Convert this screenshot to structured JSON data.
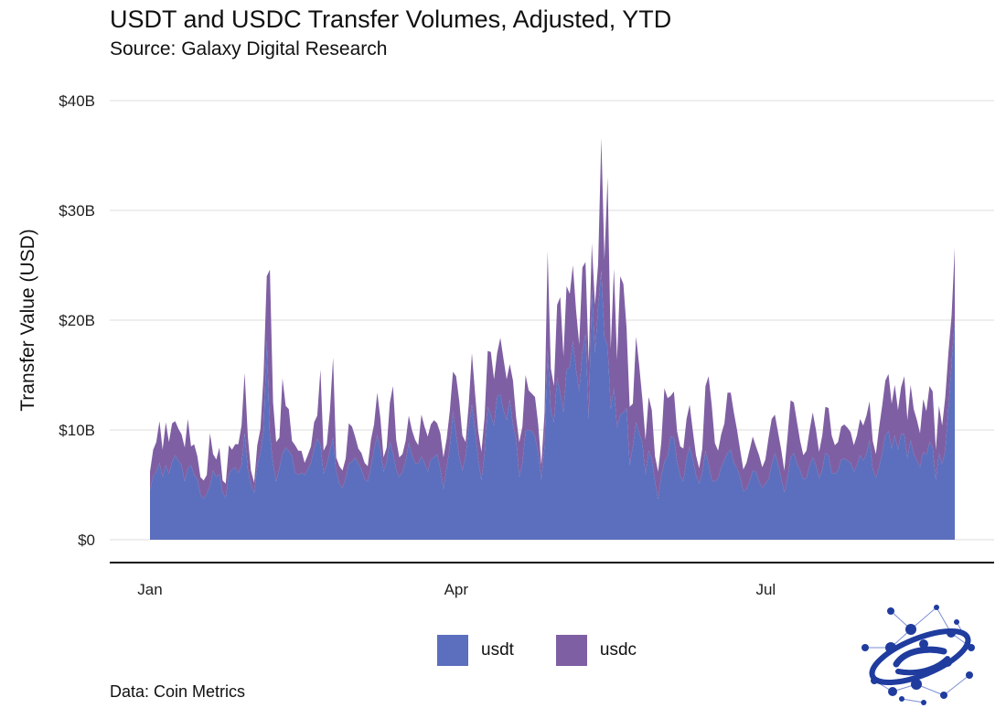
{
  "header": {
    "title": "USDT and USDC Transfer Volumes, Adjusted, YTD",
    "subtitle": "Source: Galaxy Digital Research"
  },
  "caption": "Data: Coin Metrics",
  "colors": {
    "usdt": "#5b6fbe",
    "usdc": "#7f5fa3",
    "grid": "#e3e3e3",
    "axis": "#111111"
  },
  "logo": {
    "icon": "galaxy-digital-network-globe-icon",
    "color": "#1f3c9e"
  },
  "chart_data": {
    "type": "area",
    "stacked": true,
    "title": "USDT and USDC Transfer Volumes, Adjusted, YTD",
    "subtitle": "Source: Galaxy Digital Research",
    "xlabel": "",
    "ylabel": "Transfer Value (USD)",
    "ylim": [
      0,
      40
    ],
    "y_unit": "billions USD",
    "y_ticks": [
      "$0",
      "$10B",
      "$20B",
      "$30B",
      "$40B"
    ],
    "x_ticks": [
      "Jan",
      "Apr",
      "Jul"
    ],
    "x_range_days": [
      1,
      266
    ],
    "grid": true,
    "legend_position": "bottom",
    "series": [
      {
        "name": "usdt",
        "values": [
          4.5,
          5.8,
          6.2,
          7.0,
          5.7,
          6.8,
          6.0,
          7.1,
          7.7,
          7.2,
          6.8,
          5.3,
          6.5,
          6.8,
          5.9,
          5.5,
          4.1,
          3.7,
          4.2,
          4.9,
          6.3,
          5.7,
          6.0,
          4.3,
          3.8,
          6.0,
          6.4,
          6.6,
          6.1,
          6.8,
          9.7,
          6.4,
          5.0,
          4.2,
          6.8,
          7.9,
          9.9,
          18.2,
          9.6,
          6.9,
          5.3,
          6.5,
          7.8,
          8.4,
          8.1,
          7.6,
          6.1,
          5.9,
          6.1,
          5.9,
          6.4,
          7.0,
          8.3,
          9.2,
          8.7,
          6.0,
          6.8,
          8.1,
          9.3,
          6.2,
          5.1,
          4.7,
          5.6,
          6.9,
          7.1,
          7.5,
          6.9,
          6.4,
          5.5,
          5.3,
          6.6,
          8.2,
          9.5,
          8.2,
          6.2,
          7.1,
          8.9,
          7.9,
          6.4,
          5.7,
          6.2,
          7.1,
          8.8,
          7.7,
          7.0,
          6.9,
          7.6,
          7.0,
          6.2,
          7.3,
          7.5,
          7.8,
          6.4,
          4.6,
          6.6,
          8.4,
          11.7,
          9.6,
          7.5,
          6.3,
          7.6,
          10.2,
          12.3,
          9.8,
          7.3,
          5.4,
          7.7,
          12.1,
          11.3,
          10.4,
          13.1,
          13.2,
          11.8,
          10.9,
          12.8,
          10.4,
          9.2,
          5.7,
          7.0,
          9.9,
          10.0,
          9.9,
          9.4,
          7.9,
          5.5,
          8.5,
          17.3,
          11.7,
          10.7,
          14.8,
          13.4,
          11.6,
          15.5,
          15.7,
          18.1,
          15.5,
          13.5,
          17.1,
          18.7,
          11.0,
          22.8,
          17.0,
          21.2,
          24.5,
          18.5,
          17.6,
          11.9,
          13.9,
          10.2,
          11.4,
          11.6,
          12.0,
          6.8,
          8.5,
          10.7,
          9.7,
          8.8,
          5.9,
          8.1,
          7.4,
          5.3,
          3.7,
          5.8,
          7.1,
          7.6,
          9.4,
          9.3,
          7.1,
          5.8,
          5.3,
          7.4,
          8.5,
          7.3,
          5.9,
          5.1,
          6.1,
          8.1,
          6.9,
          5.4,
          5.3,
          5.6,
          6.6,
          7.3,
          7.9,
          8.2,
          7.0,
          6.5,
          5.7,
          4.4,
          4.6,
          5.3,
          6.3,
          6.2,
          5.3,
          4.7,
          5.1,
          5.5,
          6.8,
          7.9,
          6.9,
          5.6,
          4.3,
          5.6,
          7.5,
          7.9,
          6.9,
          6.3,
          5.5,
          5.6,
          6.8,
          7.5,
          6.8,
          5.6,
          6.4,
          7.9,
          7.7,
          6.1,
          6.0,
          6.3,
          7.3,
          7.4,
          7.2,
          7.0,
          6.2,
          6.8,
          7.7,
          7.2,
          7.8,
          9.1,
          6.4,
          5.6,
          6.6,
          7.9,
          9.5,
          9.9,
          8.3,
          9.5,
          8.2,
          9.6,
          9.6,
          7.4,
          9.1,
          7.8,
          7.2,
          6.6,
          8.0,
          7.7,
          8.9,
          8.4,
          5.4,
          7.9,
          6.9,
          8.1,
          12.1,
          16.1,
          20.0
        ]
      },
      {
        "name": "usdc",
        "values": [
          1.7,
          2.4,
          2.7,
          3.8,
          2.5,
          3.9,
          2.9,
          3.5,
          3.1,
          2.9,
          2.8,
          3.1,
          4.5,
          1.7,
          2.8,
          2.1,
          1.6,
          1.7,
          1.7,
          4.8,
          1.5,
          1.6,
          2.4,
          1.1,
          1.3,
          2.6,
          1.8,
          2.1,
          2.6,
          3.6,
          5.5,
          3.0,
          1.3,
          1.0,
          1.8,
          2.2,
          5.1,
          5.8,
          15.0,
          5.6,
          3.6,
          2.8,
          6.9,
          3.8,
          3.8,
          1.4,
          2.5,
          2.2,
          2.0,
          1.1,
          1.3,
          1.5,
          2.4,
          2.1,
          6.8,
          2.1,
          1.9,
          3.6,
          7.3,
          1.3,
          1.6,
          1.6,
          1.8,
          3.7,
          3.2,
          1.9,
          1.4,
          1.5,
          1.5,
          1.4,
          2.5,
          2.3,
          3.9,
          2.9,
          1.3,
          1.3,
          3.6,
          6.1,
          2.7,
          1.8,
          1.6,
          1.9,
          2.5,
          2.3,
          2.1,
          1.7,
          3.8,
          3.3,
          3.2,
          3.2,
          3.4,
          2.8,
          3.3,
          2.9,
          2.6,
          3.3,
          3.6,
          5.3,
          5.1,
          3.2,
          1.3,
          2.1,
          4.7,
          3.5,
          2.6,
          2.6,
          3.4,
          5.1,
          5.8,
          4.2,
          3.9,
          5.2,
          4.7,
          3.7,
          3.2,
          4.1,
          2.0,
          3.2,
          3.3,
          5.1,
          3.6,
          3.4,
          3.6,
          2.6,
          1.3,
          3.0,
          9.0,
          3.9,
          3.3,
          6.6,
          8.7,
          5.1,
          7.6,
          6.7,
          6.9,
          5.4,
          4.3,
          7.7,
          6.6,
          5.2,
          4.2,
          4.4,
          3.9,
          12.1,
          7.0,
          15.4,
          5.5,
          10.8,
          6.2,
          12.6,
          11.7,
          7.3,
          5.3,
          3.9,
          7.8,
          6.2,
          4.0,
          3.2,
          4.9,
          4.4,
          2.3,
          2.5,
          3.1,
          6.7,
          5.3,
          3.7,
          4.2,
          2.8,
          2.7,
          3.0,
          3.6,
          3.8,
          2.6,
          1.8,
          1.4,
          2.2,
          5.9,
          8.0,
          6.8,
          3.5,
          2.5,
          3.0,
          3.3,
          5.5,
          5.2,
          4.6,
          3.5,
          2.5,
          2.0,
          2.4,
          2.9,
          3.1,
          2.3,
          2.4,
          1.9,
          2.2,
          3.8,
          4.2,
          3.5,
          2.9,
          2.6,
          2.0,
          3.8,
          5.2,
          4.6,
          3.8,
          2.7,
          2.2,
          2.5,
          3.2,
          4.1,
          3.2,
          2.4,
          3.1,
          4.2,
          4.3,
          3.4,
          2.6,
          2.6,
          3.0,
          3.1,
          3.0,
          2.8,
          2.4,
          2.7,
          3.3,
          3.2,
          3.5,
          3.5,
          2.6,
          2.2,
          3.6,
          4.3,
          5.0,
          5.2,
          4.1,
          4.6,
          3.6,
          4.3,
          5.3,
          3.5,
          5.0,
          4.1,
          3.7,
          3.1,
          4.8,
          4.0,
          5.1,
          5.1,
          2.8,
          4.3,
          3.5,
          4.9,
          5.0,
          4.3,
          6.6
        ]
      }
    ]
  }
}
